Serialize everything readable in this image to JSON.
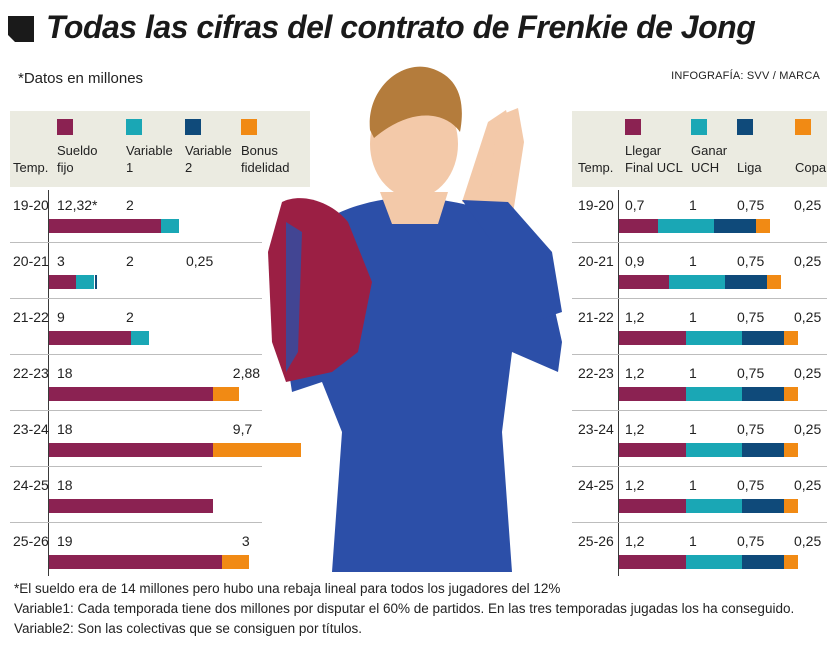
{
  "header": {
    "title": "Todas las cifras del contrato de Frenkie de Jong",
    "note": "*Datos en millones",
    "credit": "INFOGRAFÍA: SVV / MARCA"
  },
  "colors": {
    "sueldo_fijo": "#8b2252",
    "variable_1": "#1aa7b5",
    "variable_2": "#0f4a7a",
    "bonus": "#f18a14",
    "llegar_final_ucl": "#8b2252",
    "ganar_uch": "#1aa7b5",
    "liga": "#0f4a7a",
    "copa": "#f18a14"
  },
  "illustration": {
    "subject": "player-photo",
    "kit_colors": [
      "#2c4fa8",
      "#9b1f44",
      "#f3c9a9"
    ]
  },
  "chart_data": [
    {
      "type": "bar",
      "stacked": true,
      "orientation": "horizontal",
      "column_header": "Temp.",
      "categories": [
        "19-20",
        "20-21",
        "21-22",
        "22-23",
        "23-24",
        "24-25",
        "25-26"
      ],
      "series": [
        {
          "name": "Sueldo fijo",
          "name_lines": [
            "Sueldo",
            "fijo"
          ],
          "values": [
            12.32,
            3,
            9,
            18,
            18,
            18,
            19
          ],
          "labels": [
            "12,32*",
            "3",
            "9",
            "18",
            "18",
            "18",
            "19"
          ]
        },
        {
          "name": "Variable 1",
          "name_lines": [
            "Variable",
            "1"
          ],
          "values": [
            2,
            2,
            2,
            0,
            0,
            0,
            0
          ],
          "labels": [
            "2",
            "2",
            "2",
            "",
            "",
            "",
            ""
          ]
        },
        {
          "name": "Variable 2",
          "name_lines": [
            "Variable",
            "2"
          ],
          "values": [
            0,
            0.25,
            0,
            0,
            0,
            0,
            0
          ],
          "labels": [
            "",
            "0,25",
            "",
            "",
            "",
            "",
            ""
          ]
        },
        {
          "name": "Bonus fidelidad",
          "name_lines": [
            "Bonus",
            "fidelidad"
          ],
          "values": [
            0,
            0,
            0,
            2.88,
            9.7,
            0,
            3
          ],
          "labels": [
            "",
            "",
            "",
            "2,88",
            "9,7",
            "",
            "3"
          ]
        }
      ],
      "title": "",
      "xlabel": "",
      "ylabel": "",
      "xlim": [
        0,
        28
      ],
      "grid": false,
      "legend": "top"
    },
    {
      "type": "bar",
      "stacked": true,
      "orientation": "horizontal",
      "column_header": "Temp.",
      "categories": [
        "19-20",
        "20-21",
        "21-22",
        "22-23",
        "23-24",
        "24-25",
        "25-26"
      ],
      "series": [
        {
          "name": "Llegar Final UCL",
          "name_lines": [
            "Llegar",
            "Final UCL"
          ],
          "values": [
            0.7,
            0.9,
            1.2,
            1.2,
            1.2,
            1.2,
            1.2
          ],
          "labels": [
            "0,7",
            "0,9",
            "1,2",
            "1,2",
            "1,2",
            "1,2",
            "1,2"
          ]
        },
        {
          "name": "Ganar UCH",
          "name_lines": [
            "Ganar",
            "UCH"
          ],
          "values": [
            1,
            1,
            1,
            1,
            1,
            1,
            1
          ],
          "labels": [
            "1",
            "1",
            "1",
            "1",
            "1",
            "1",
            "1"
          ]
        },
        {
          "name": "Liga",
          "name_lines": [
            "Liga"
          ],
          "values": [
            0.75,
            0.75,
            0.75,
            0.75,
            0.75,
            0.75,
            0.75
          ],
          "labels": [
            "0,75",
            "0,75",
            "0,75",
            "0,75",
            "0,75",
            "0,75",
            "0,75"
          ]
        },
        {
          "name": "Copa",
          "name_lines": [
            "Copa"
          ],
          "values": [
            0.25,
            0.25,
            0.25,
            0.25,
            0.25,
            0.25,
            0.25
          ],
          "labels": [
            "0,25",
            "0,25",
            "0,25",
            "0,25",
            "0,25",
            "0,25",
            "0,25"
          ]
        }
      ],
      "title": "",
      "xlabel": "",
      "ylabel": "",
      "xlim": [
        0,
        3.4
      ],
      "grid": false,
      "legend": "top"
    }
  ],
  "footnotes": [
    "*El sueldo era de 14 millones pero hubo una rebaja lineal para todos los jugadores del 12%",
    "Variable1: Cada temporada tiene dos millones por disputar el 60% de partidos. En las tres temporadas jugadas los ha conseguido.",
    "Variable2: Son las colectivas que se consiguen por títulos."
  ]
}
